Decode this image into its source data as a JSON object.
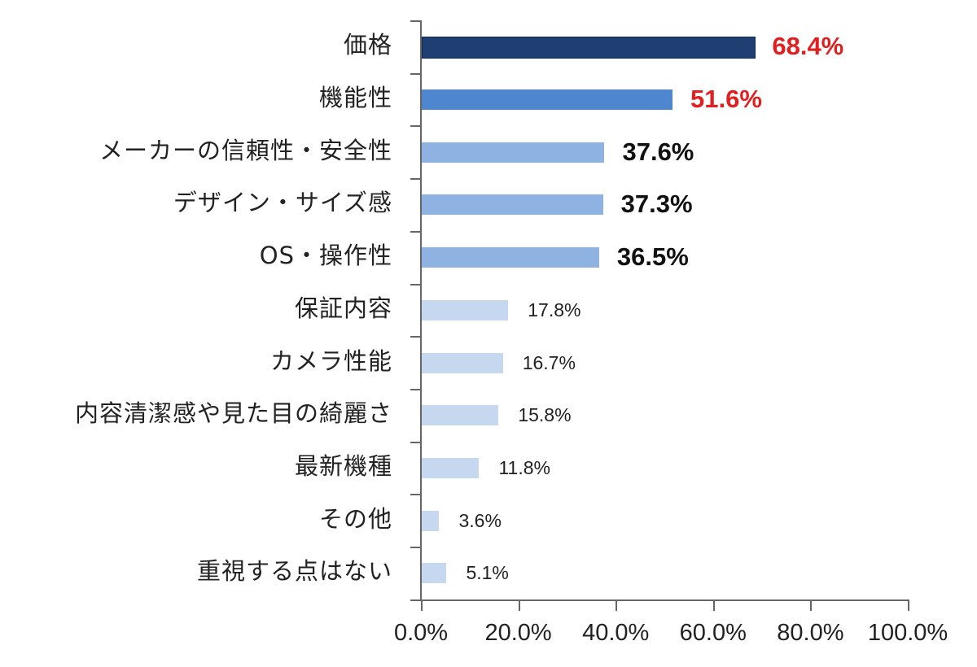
{
  "chart_data": {
    "type": "bar",
    "orientation": "horizontal",
    "title": "",
    "xlabel": "",
    "ylabel": "",
    "xlim": [
      0,
      100
    ],
    "x_ticks": [
      "0.0%",
      "20.0%",
      "40.0%",
      "60.0%",
      "80.0%",
      "100.0%"
    ],
    "grid": false,
    "legend": null,
    "categories": [
      "価格",
      "機能性",
      "メーカーの信頼性・安全性",
      "デザイン・サイズ感",
      "OS・操作性",
      "保証内容",
      "カメラ性能",
      "内容清潔感や見た目の綺麗さ",
      "最新機種",
      "その他",
      "重視する点はない"
    ],
    "values": [
      68.4,
      51.6,
      37.6,
      37.3,
      36.5,
      17.8,
      16.7,
      15.8,
      11.8,
      3.6,
      5.1
    ],
    "value_labels": [
      "68.4%",
      "51.6%",
      "37.6%",
      "37.3%",
      "36.5%",
      "17.8%",
      "16.7%",
      "15.8%",
      "11.8%",
      "3.6%",
      "5.1%"
    ],
    "bar_colors": [
      "#1f3f73",
      "#4f86d0",
      "#8eb2e1",
      "#8eb2e1",
      "#8eb2e1",
      "#c6d8ef",
      "#c6d8ef",
      "#c6d8ef",
      "#c6d8ef",
      "#c6d8ef",
      "#c6d8ef"
    ],
    "label_colors": [
      "#e02020",
      "#e02020",
      "#111111",
      "#111111",
      "#111111",
      "#222222",
      "#222222",
      "#222222",
      "#222222",
      "#222222",
      "#222222"
    ],
    "label_emphasis": [
      "big",
      "big",
      "big",
      "big",
      "big",
      "small",
      "small",
      "small",
      "small",
      "small",
      "small"
    ]
  }
}
